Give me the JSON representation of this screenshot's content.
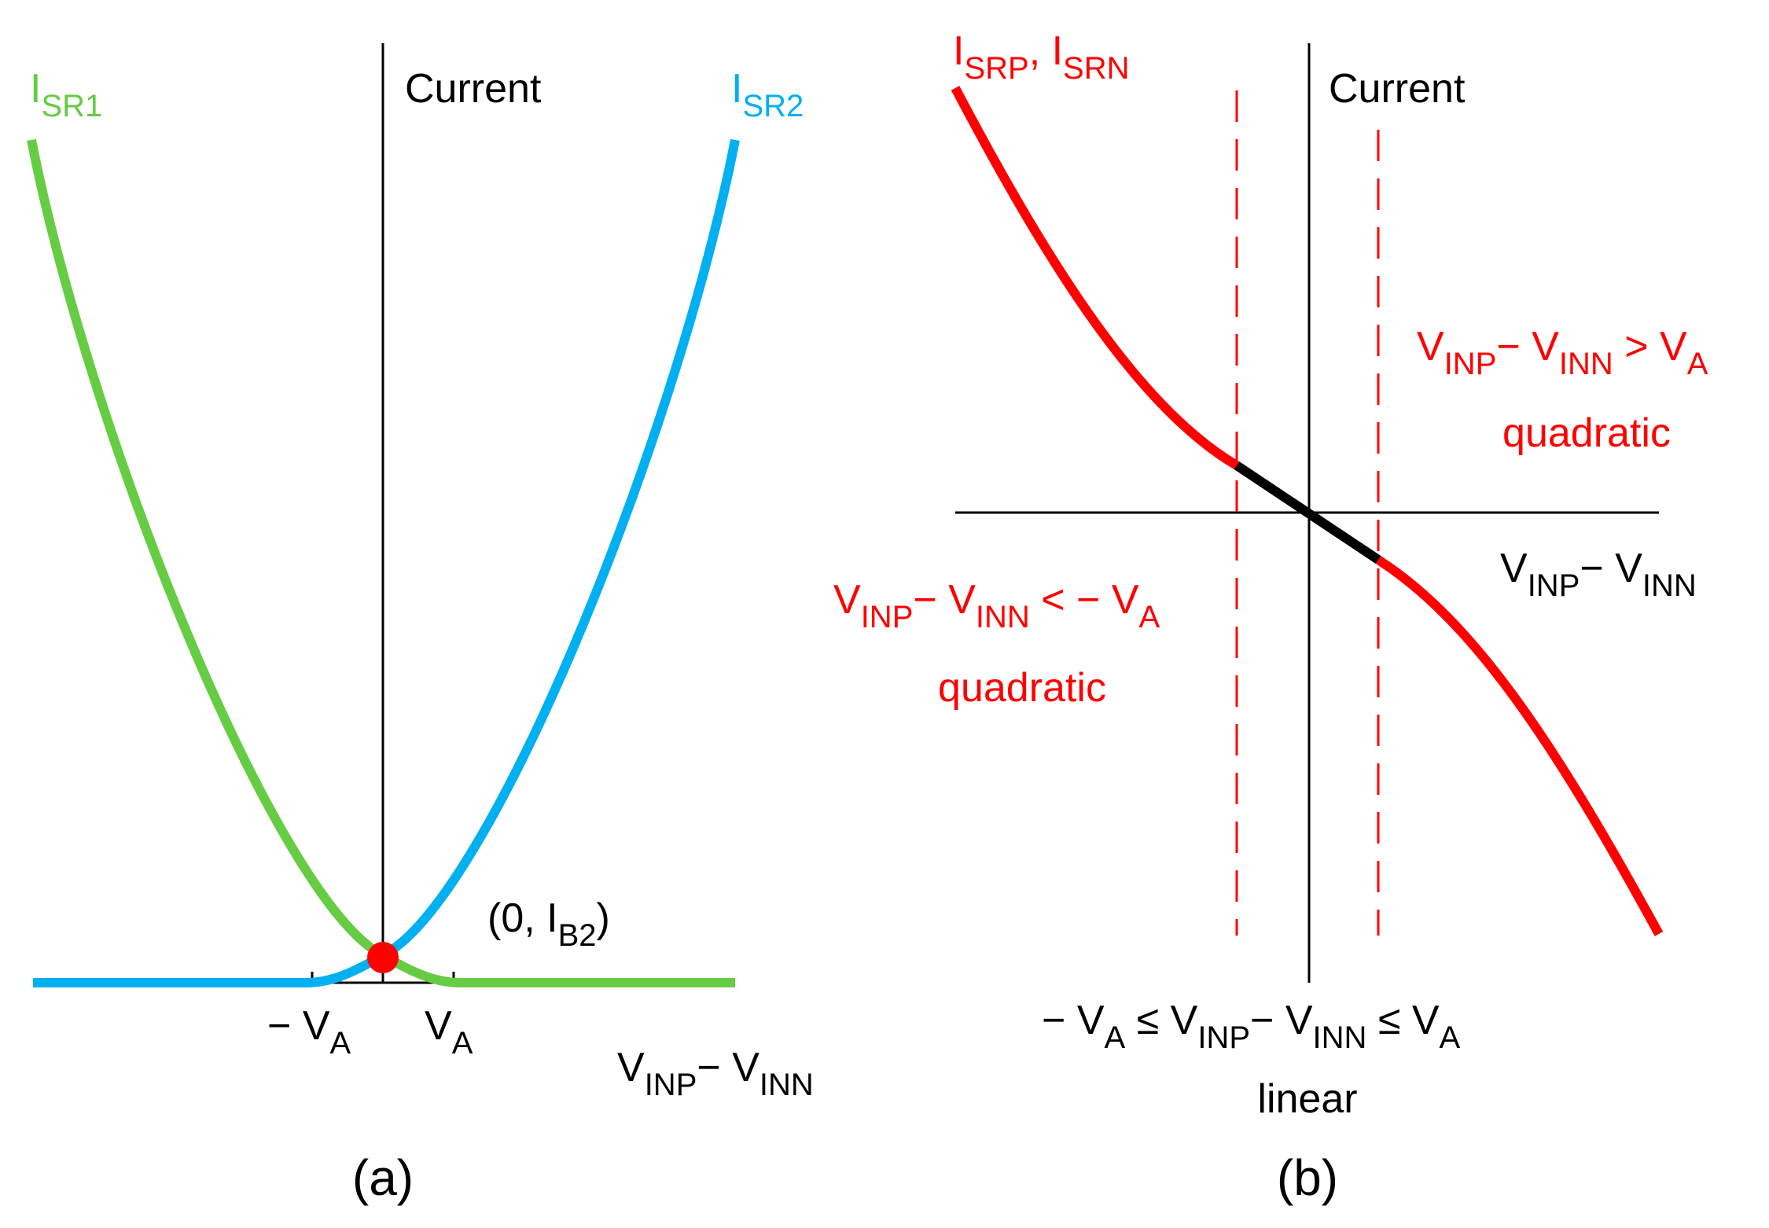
{
  "colors": {
    "axis": "#000000",
    "isr1": "#66cc44",
    "isr2": "#00b0f0",
    "red": "#ff0000",
    "linear_segment": "#000000"
  },
  "panel_a": {
    "y_axis_label": "Current",
    "isr1": {
      "main": "I",
      "sub": "SR1"
    },
    "isr2": {
      "main": "I",
      "sub": "SR2"
    },
    "point": {
      "pre": "(0, I",
      "sub": "B2",
      "post": ")"
    },
    "neg_va": {
      "main": "− V",
      "sub": "A"
    },
    "pos_va": {
      "main": "V",
      "sub": "A"
    },
    "x_axis": {
      "v1": "V",
      "s1": "INP",
      "dash": "− V",
      "s2": "INN"
    },
    "caption": "(a)"
  },
  "panel_b": {
    "y_axis_label": "Current",
    "curve_label": {
      "m1": "I",
      "s1": "SRP",
      "comma": ", I",
      "s2": "SRN"
    },
    "right_region": {
      "v1": "V",
      "s1": "INP",
      "dash": "− V",
      "s2": "INN",
      "cmp": " > V",
      "s3": "A",
      "word": "quadratic"
    },
    "left_region": {
      "v1": "V",
      "s1": "INP",
      "dash": "− V",
      "s2": "INN",
      "cmp": " < − V",
      "s3": "A",
      "word": "quadratic"
    },
    "x_axis": {
      "v1": "V",
      "s1": "INP",
      "dash": "− V",
      "s2": "INN"
    },
    "linear_region": {
      "pre": "−  V",
      "s0": "A",
      "le1": " ≤ V",
      "s1": "INP",
      "dash": "− V",
      "s2": "INN",
      "le2": " ≤ V",
      "s3": "A",
      "word": "linear"
    },
    "caption": "(b)"
  }
}
